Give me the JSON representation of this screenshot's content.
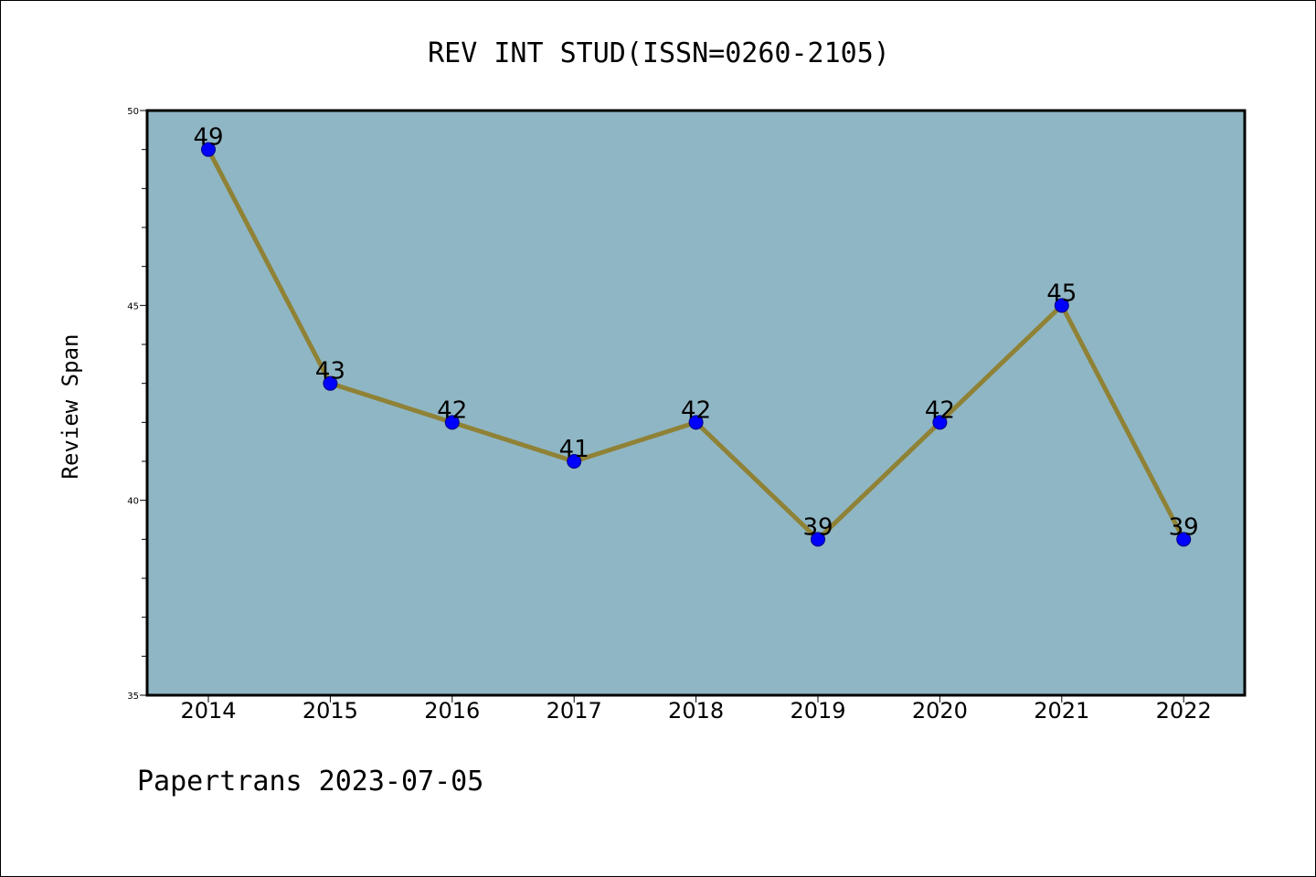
{
  "chart_data": {
    "type": "line",
    "title": "REV INT STUD(ISSN=0260-2105)",
    "xlabel": "",
    "ylabel": "Review Span",
    "categories": [
      "2014",
      "2015",
      "2016",
      "2017",
      "2018",
      "2019",
      "2020",
      "2021",
      "2022"
    ],
    "series": [
      {
        "values": [
          49,
          43,
          42,
          41,
          42,
          39,
          42,
          45,
          39
        ]
      }
    ],
    "data_labels": [
      "49",
      "43",
      "42",
      "41",
      "42",
      "39",
      "42",
      "45",
      "39"
    ],
    "ylim": [
      35,
      50
    ],
    "yticks": [
      35,
      40,
      45,
      50
    ],
    "grid": false,
    "legend": "none",
    "colors": {
      "plot_background": "#8fb6c4",
      "line": "#8f8236",
      "marker": "#0000ff",
      "axis": "#000000"
    }
  },
  "footer": {
    "text": "Papertrans 2023-07-05"
  }
}
